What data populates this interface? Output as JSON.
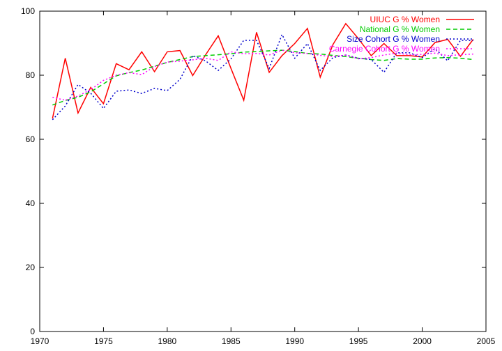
{
  "chart_data": {
    "type": "line",
    "title": "",
    "xlabel": "",
    "ylabel": "",
    "xlim": [
      1970,
      2005
    ],
    "ylim": [
      0,
      100
    ],
    "x_ticks": [
      1970,
      1975,
      1980,
      1985,
      1990,
      1995,
      2000,
      2005
    ],
    "y_ticks": [
      0,
      20,
      40,
      60,
      80,
      100
    ],
    "x_tick_labels": [
      "1970",
      "1975",
      "1980",
      "1985",
      "1990",
      "1995",
      "2000",
      "2005"
    ],
    "y_tick_labels": [
      "0",
      "20",
      "40",
      "60",
      "80",
      "100"
    ],
    "grid": false,
    "legend_position": "top-right",
    "x": [
      1971,
      1972,
      1973,
      1974,
      1975,
      1976,
      1977,
      1978,
      1979,
      1980,
      1981,
      1982,
      1983,
      1984,
      1985,
      1986,
      1987,
      1988,
      1989,
      1990,
      1991,
      1992,
      1993,
      1994,
      1995,
      1996,
      1997,
      1998,
      1999,
      2000,
      2001,
      2002,
      2003,
      2004
    ],
    "series": [
      {
        "name": "UIUC G % Women",
        "color": "#ff0000",
        "dash": "solid",
        "values": [
          66.5,
          85.3,
          68.2,
          76.2,
          71.1,
          83.6,
          81.7,
          87.3,
          81.1,
          87.3,
          87.7,
          79.9,
          86.3,
          92.3,
          82.1,
          72.2,
          93.4,
          80.9,
          86.1,
          89.9,
          94.6,
          79.4,
          89.6,
          96.1,
          91.4,
          86.1,
          89.9,
          86.1,
          86.1,
          85.7,
          90.2,
          91.2,
          85.9,
          91.2
        ]
      },
      {
        "name": "National G % Women",
        "color": "#00cc00",
        "dash": "dashed",
        "values": [
          70.7,
          72.1,
          73.1,
          74.8,
          77.3,
          79.8,
          80.8,
          81.6,
          82.8,
          84.0,
          84.9,
          85.8,
          86.1,
          86.4,
          86.7,
          87.2,
          87.4,
          87.6,
          87.8,
          87.4,
          86.8,
          86.6,
          86.2,
          85.8,
          85.3,
          84.9,
          84.6,
          85.2,
          85.0,
          85.0,
          85.4,
          85.5,
          85.3,
          84.9
        ]
      },
      {
        "name": "Size Cohort G % Women",
        "color": "#0000cc",
        "dash": "dotted",
        "values": [
          66.1,
          70.4,
          77.1,
          74.4,
          69.6,
          75.0,
          75.4,
          74.3,
          75.9,
          75.2,
          78.7,
          86.1,
          84.5,
          81.5,
          85.1,
          90.9,
          90.9,
          82.1,
          92.7,
          85.3,
          89.9,
          81.5,
          85.5,
          86.3,
          85.3,
          84.9,
          80.9,
          87.0,
          87.0,
          85.5,
          88.3,
          84.5,
          90.9,
          90.8
        ]
      },
      {
        "name": "Carnegie Cohort G % Women",
        "color": "#ff00ff",
        "dash": "dotted",
        "values": [
          73.1,
          72.2,
          73.5,
          75.5,
          78.4,
          80.0,
          80.8,
          80.2,
          82.7,
          84.1,
          84.4,
          84.8,
          85.3,
          84.6,
          87.3,
          86.7,
          86.8,
          86.3,
          87.8,
          87.0,
          86.8,
          86.2,
          85.8,
          86.3,
          85.1,
          85.5,
          86.3,
          86.9,
          86.4,
          86.5,
          86.9,
          86.1,
          86.4,
          86.6
        ]
      }
    ]
  }
}
